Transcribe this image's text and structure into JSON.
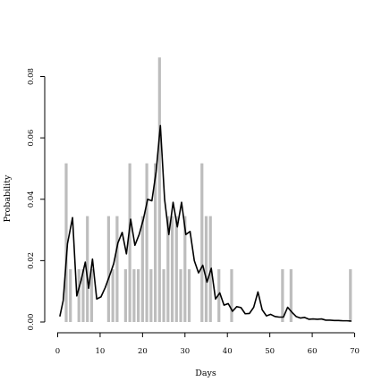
{
  "chart_data": {
    "type": "bar",
    "title": "",
    "xlabel": "Days",
    "ylabel": "Probability",
    "xlim": [
      0,
      70
    ],
    "ylim": [
      0,
      0.085
    ],
    "xticks": [
      0,
      10,
      20,
      30,
      40,
      50,
      60,
      70
    ],
    "yticks": [
      0.0,
      0.02,
      0.04,
      0.06,
      0.08
    ],
    "ytick_labels": [
      "0.00",
      "0.02",
      "0.04",
      "0.06",
      "0.08"
    ],
    "grid": false,
    "legend": "none",
    "colors": {
      "bars": "#bdbdbd",
      "line": "#000000"
    },
    "series": [
      {
        "type": "bar",
        "x": [
          2,
          3,
          5,
          6,
          7,
          8,
          12,
          13,
          14,
          16,
          17,
          18,
          19,
          20,
          21,
          22,
          23,
          24,
          25,
          26,
          27,
          28,
          29,
          30,
          31,
          34,
          35,
          36,
          38,
          41,
          53,
          55,
          69
        ],
        "values": [
          0.0517,
          0.0172,
          0.0172,
          0.0172,
          0.0345,
          0.0172,
          0.0345,
          0.0172,
          0.0345,
          0.0172,
          0.0517,
          0.0172,
          0.0172,
          0.0345,
          0.0517,
          0.0172,
          0.0517,
          0.0862,
          0.0172,
          0.0345,
          0.0345,
          0.0345,
          0.0172,
          0.0345,
          0.0172,
          0.0517,
          0.0345,
          0.0345,
          0.0172,
          0.0172,
          0.0172,
          0.0172,
          0.0172
        ]
      },
      {
        "type": "line",
        "x": [
          0.5,
          1.3,
          2.3,
          3.5,
          4.5,
          5.5,
          6.5,
          7.3,
          8.2,
          9.2,
          10.2,
          11.2,
          12.2,
          13.2,
          14.2,
          15.2,
          16.2,
          17.2,
          18.2,
          19.2,
          20.2,
          21.2,
          22.2,
          23.2,
          24.2,
          25.2,
          26.2,
          27.2,
          28.2,
          29.2,
          30.2,
          31.2,
          32.2,
          33.2,
          34.2,
          35.2,
          36.2,
          37.2,
          38.2,
          39.2,
          40.2,
          41.2,
          42.2,
          43.2,
          44.2,
          45.2,
          46.2,
          47.2,
          48.2,
          49.2,
          50.2,
          51.2,
          52.2,
          53.2,
          54.2,
          55.2,
          56.2,
          57.2,
          58.2,
          59.2,
          60.2,
          61.2,
          62.2,
          63.2,
          64.2,
          65.2,
          66.2,
          67.2,
          68.2,
          69.2
        ],
        "values": [
          0.0018,
          0.007,
          0.0255,
          0.034,
          0.0085,
          0.0135,
          0.0195,
          0.011,
          0.0205,
          0.0075,
          0.0082,
          0.0112,
          0.015,
          0.019,
          0.0258,
          0.0292,
          0.0222,
          0.0335,
          0.025,
          0.0285,
          0.0335,
          0.04,
          0.0395,
          0.049,
          0.064,
          0.04,
          0.0285,
          0.039,
          0.031,
          0.039,
          0.0285,
          0.0295,
          0.02,
          0.016,
          0.0185,
          0.013,
          0.0175,
          0.0075,
          0.0095,
          0.0055,
          0.006,
          0.0035,
          0.005,
          0.0047,
          0.0027,
          0.0028,
          0.0048,
          0.0098,
          0.004,
          0.002,
          0.0025,
          0.0018,
          0.0016,
          0.0016,
          0.0048,
          0.0032,
          0.0018,
          0.0013,
          0.0015,
          0.0009,
          0.001,
          0.0009,
          0.001,
          0.0006,
          0.0006,
          0.0005,
          0.0005,
          0.0004,
          0.0004,
          0.0003
        ]
      }
    ]
  }
}
